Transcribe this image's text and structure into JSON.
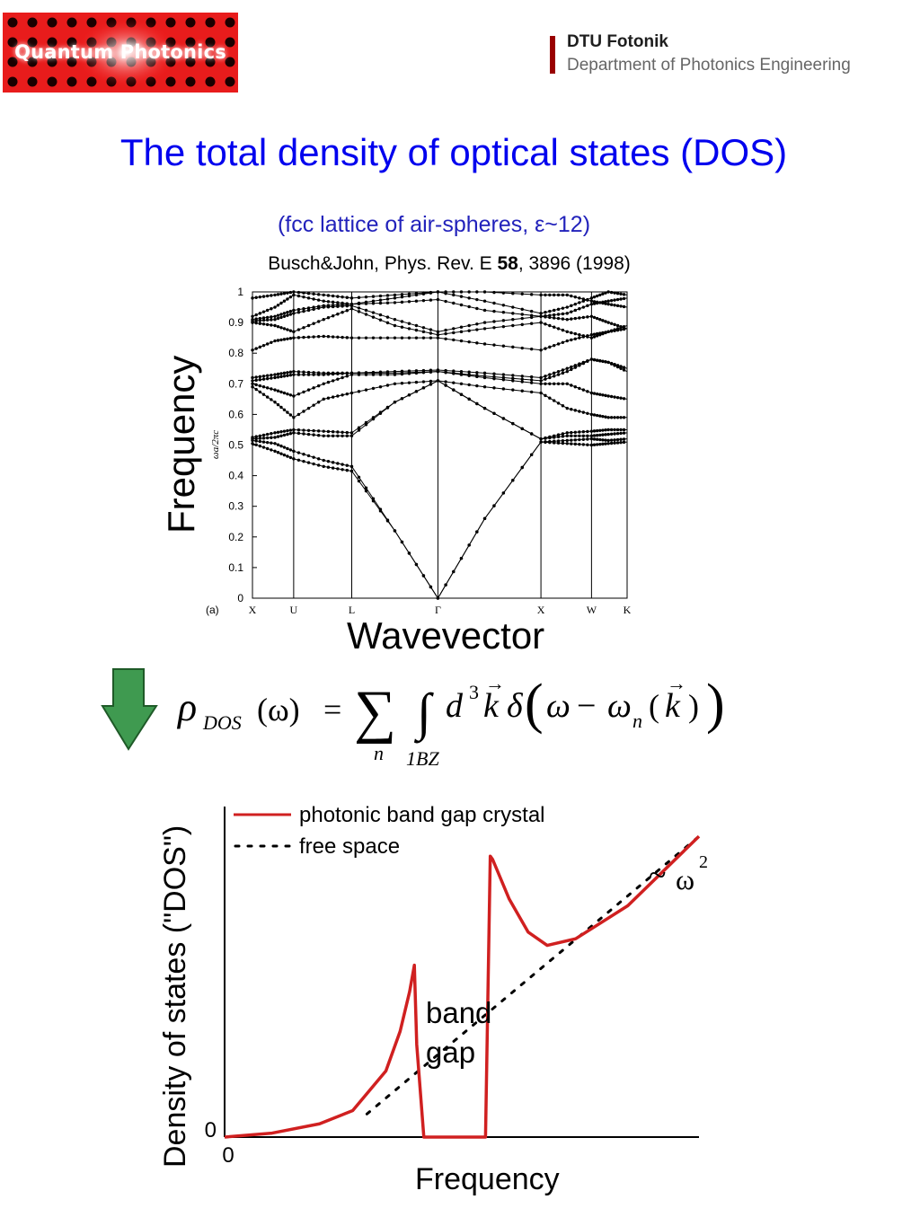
{
  "header": {
    "logo_text": "Quantum Photonics",
    "institution": "DTU Fotonik",
    "department": "Department of Photonics Engineering",
    "brand_color": "#990000"
  },
  "title": "The total density of optical states (DOS)",
  "subtitle": "(fcc lattice of air-spheres, ε~12)",
  "reference": {
    "prefix": "Busch&John, Phys. Rev. E ",
    "volume": "58",
    "suffix": ", 3896 (1998)"
  },
  "formula": {
    "lhs": "ρDOS(ω) =",
    "sum_index": "n",
    "integral_domain": "1BZ",
    "integrand": "d³k δ(ω − ωn(k))"
  },
  "colors": {
    "title": "#0000ee",
    "subtitle": "#2222bb",
    "pbg_line": "#d02020",
    "arrow_green": "#3f9a50"
  },
  "chart_data": [
    {
      "type": "line",
      "panel_label": "(a)",
      "ylabel_small": "ωa/2πc",
      "ylabel_large": "Frequency",
      "xlabel_large": "Wavevector",
      "ylim": [
        0,
        1
      ],
      "yticks": [
        "0",
        "0.1",
        "0.2",
        "0.3",
        "0.4",
        "0.5",
        "0.6",
        "0.7",
        "0.8",
        "0.9",
        "1"
      ],
      "kpoint_labels": [
        "X",
        "U",
        "L",
        "Γ",
        "X",
        "W",
        "K"
      ],
      "kpoint_positions": [
        0,
        0.11,
        0.265,
        0.495,
        0.77,
        0.905,
        1.0
      ],
      "bands": [
        {
          "x": [
            0,
            0.06,
            0.11,
            0.19,
            0.265,
            0.38,
            0.495,
            0.62,
            0.77,
            0.84,
            0.905,
            0.95,
            1.0
          ],
          "y": [
            0.505,
            0.48,
            0.455,
            0.43,
            0.415,
            0.22,
            0.0,
            0.26,
            0.51,
            0.505,
            0.5,
            0.505,
            0.51
          ]
        },
        {
          "x": [
            0,
            0.06,
            0.11,
            0.19,
            0.265,
            0.38,
            0.495,
            0.62,
            0.77,
            0.84,
            0.905,
            0.95,
            1.0
          ],
          "y": [
            0.515,
            0.505,
            0.48,
            0.45,
            0.43,
            0.22,
            0.0,
            0.26,
            0.51,
            0.515,
            0.52,
            0.515,
            0.52
          ]
        },
        {
          "x": [
            0,
            0.06,
            0.11,
            0.19,
            0.265,
            0.38,
            0.495,
            0.62,
            0.77,
            0.84,
            0.905,
            0.95,
            1.0
          ],
          "y": [
            0.52,
            0.525,
            0.54,
            0.53,
            0.53,
            0.64,
            0.71,
            0.62,
            0.52,
            0.53,
            0.53,
            0.535,
            0.54
          ]
        },
        {
          "x": [
            0,
            0.06,
            0.11,
            0.19,
            0.265,
            0.38,
            0.495,
            0.62,
            0.77,
            0.84,
            0.905,
            0.95,
            1.0
          ],
          "y": [
            0.525,
            0.54,
            0.55,
            0.545,
            0.54,
            0.64,
            0.71,
            0.62,
            0.52,
            0.54,
            0.545,
            0.55,
            0.55
          ]
        },
        {
          "x": [
            0,
            0.06,
            0.11,
            0.19,
            0.265,
            0.38,
            0.495,
            0.62,
            0.77,
            0.84,
            0.905,
            0.95,
            1.0
          ],
          "y": [
            0.69,
            0.64,
            0.59,
            0.65,
            0.67,
            0.7,
            0.71,
            0.69,
            0.67,
            0.62,
            0.6,
            0.59,
            0.59
          ]
        },
        {
          "x": [
            0,
            0.06,
            0.11,
            0.19,
            0.265,
            0.38,
            0.495,
            0.62,
            0.77,
            0.84,
            0.905,
            0.95,
            1.0
          ],
          "y": [
            0.7,
            0.68,
            0.66,
            0.7,
            0.73,
            0.73,
            0.74,
            0.72,
            0.7,
            0.7,
            0.67,
            0.66,
            0.65
          ]
        },
        {
          "x": [
            0,
            0.06,
            0.11,
            0.19,
            0.265,
            0.38,
            0.495,
            0.62,
            0.77,
            0.84,
            0.905,
            0.95,
            1.0
          ],
          "y": [
            0.71,
            0.72,
            0.73,
            0.73,
            0.735,
            0.735,
            0.74,
            0.725,
            0.71,
            0.74,
            0.78,
            0.77,
            0.74
          ]
        },
        {
          "x": [
            0,
            0.06,
            0.11,
            0.19,
            0.265,
            0.38,
            0.495,
            0.62,
            0.77,
            0.84,
            0.905,
            0.95,
            1.0
          ],
          "y": [
            0.72,
            0.73,
            0.74,
            0.735,
            0.735,
            0.74,
            0.745,
            0.735,
            0.72,
            0.75,
            0.78,
            0.77,
            0.75
          ]
        },
        {
          "x": [
            0,
            0.06,
            0.11,
            0.19,
            0.265,
            0.38,
            0.495,
            0.62,
            0.77,
            0.84,
            0.905,
            0.95,
            1.0
          ],
          "y": [
            0.81,
            0.84,
            0.85,
            0.855,
            0.85,
            0.85,
            0.85,
            0.83,
            0.81,
            0.84,
            0.86,
            0.87,
            0.88
          ]
        },
        {
          "x": [
            0,
            0.06,
            0.11,
            0.19,
            0.265,
            0.38,
            0.495,
            0.62,
            0.77,
            0.84,
            0.905,
            0.95,
            1.0
          ],
          "y": [
            0.9,
            0.89,
            0.87,
            0.91,
            0.945,
            0.89,
            0.86,
            0.88,
            0.9,
            0.87,
            0.85,
            0.87,
            0.89
          ]
        },
        {
          "x": [
            0,
            0.06,
            0.11,
            0.19,
            0.265,
            0.38,
            0.495,
            0.62,
            0.77,
            0.84,
            0.905,
            0.95,
            1.0
          ],
          "y": [
            0.905,
            0.91,
            0.93,
            0.95,
            0.955,
            0.91,
            0.87,
            0.9,
            0.92,
            0.91,
            0.92,
            0.9,
            0.88
          ]
        },
        {
          "x": [
            0,
            0.06,
            0.11,
            0.19,
            0.265,
            0.38,
            0.495,
            0.62,
            0.77,
            0.84,
            0.905,
            0.95,
            1.0
          ],
          "y": [
            0.91,
            0.92,
            0.94,
            0.955,
            0.96,
            0.965,
            0.975,
            0.94,
            0.92,
            0.93,
            0.96,
            0.97,
            0.98
          ]
        },
        {
          "x": [
            0,
            0.06,
            0.11,
            0.19,
            0.265,
            0.38,
            0.495,
            0.62,
            0.77,
            0.84,
            0.905,
            0.95,
            1.0
          ],
          "y": [
            0.92,
            0.95,
            0.99,
            0.97,
            0.96,
            0.98,
            1.0,
            0.97,
            0.93,
            0.95,
            0.98,
            1.0,
            0.99
          ]
        },
        {
          "x": [
            0,
            0.06,
            0.11,
            0.19,
            0.265,
            0.38,
            0.495,
            0.62,
            0.77,
            0.84,
            0.905,
            0.95,
            1.0
          ],
          "y": [
            0.98,
            0.99,
            1.0,
            0.99,
            0.98,
            0.99,
            1.0,
            1.0,
            0.99,
            0.99,
            0.97,
            0.96,
            0.95
          ]
        }
      ]
    },
    {
      "type": "line",
      "xlabel": "Frequency",
      "ylabel": "Density of states (\"DOS\")",
      "x_tick": "0",
      "y_tick": "0",
      "xlim": [
        0,
        1
      ],
      "ylim": [
        0,
        1
      ],
      "annotation_band_gap": [
        "band",
        "gap"
      ],
      "annotation_scaling_prefix": "~ ",
      "annotation_scaling_base": "ω",
      "annotation_scaling_exp": "2",
      "legend_position": "top-left",
      "series": [
        {
          "name": "photonic band gap crystal",
          "style": "solid",
          "x": [
            0,
            0.1,
            0.2,
            0.27,
            0.34,
            0.37,
            0.39,
            0.4,
            0.405,
            0.42,
            0.55,
            0.56,
            0.565,
            0.6,
            0.64,
            0.68,
            0.74,
            0.85,
            1.0
          ],
          "y": [
            0,
            0.012,
            0.04,
            0.08,
            0.2,
            0.32,
            0.44,
            0.52,
            0.28,
            0.0,
            0.0,
            0.85,
            0.84,
            0.72,
            0.62,
            0.58,
            0.6,
            0.7,
            0.91
          ]
        },
        {
          "name": "free space",
          "style": "dotted",
          "x": [
            0.3,
            1.0
          ],
          "y": [
            0.07,
            0.91
          ]
        }
      ]
    }
  ]
}
